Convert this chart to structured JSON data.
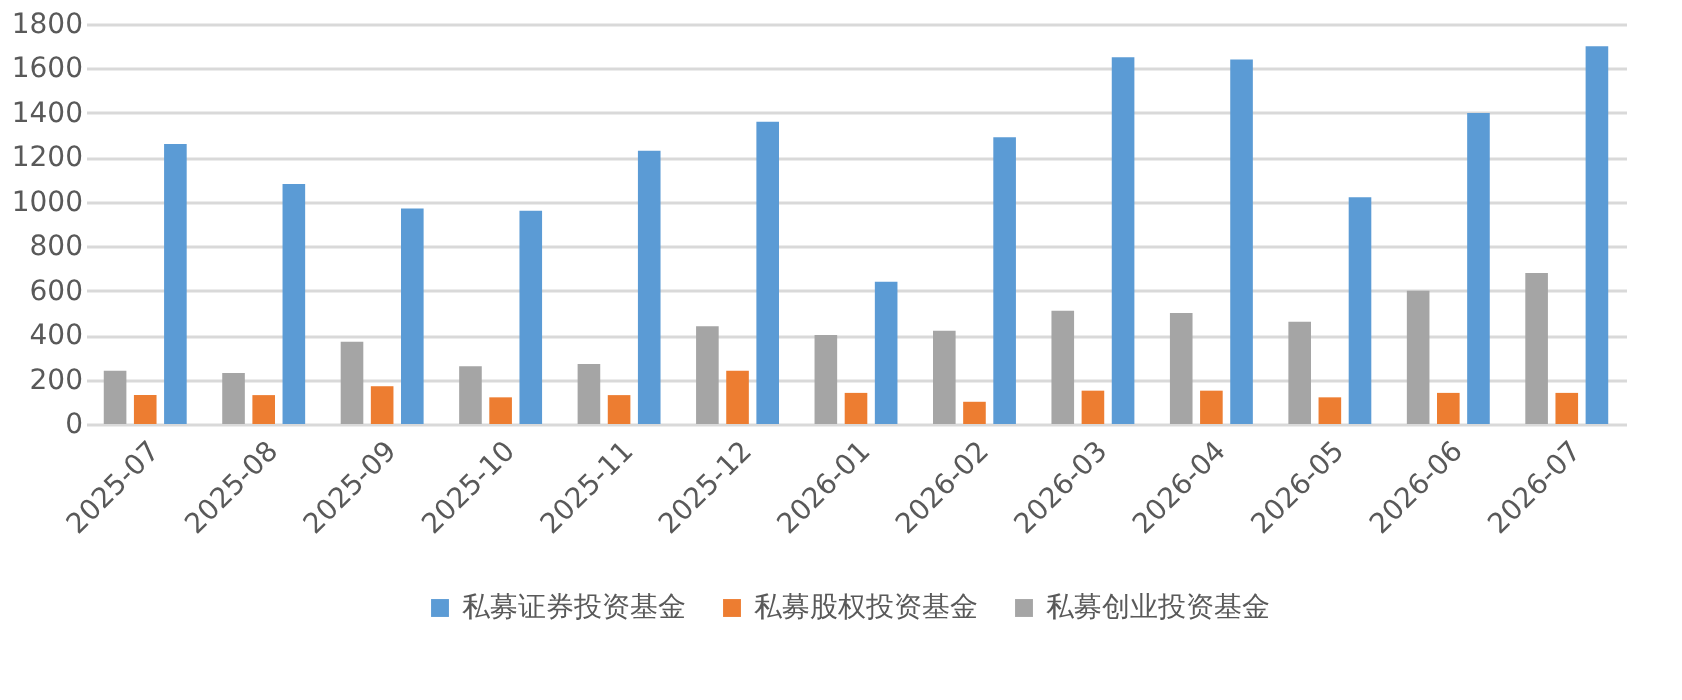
{
  "chart_data": {
    "type": "bar",
    "categories": [
      "2025-07",
      "2025-08",
      "2025-09",
      "2025-10",
      "2025-11",
      "2025-12",
      "2026-01",
      "2026-02",
      "2026-03",
      "2026-04",
      "2026-05",
      "2026-06",
      "2026-07"
    ],
    "series": [
      {
        "name": "私募证券投资基金",
        "color": "#5b9bd5",
        "values": [
          1260,
          1080,
          970,
          960,
          1230,
          1360,
          640,
          1290,
          1650,
          1640,
          1020,
          1400,
          1700
        ]
      },
      {
        "name": "私募股权投资基金",
        "color": "#ed7d31",
        "values": [
          130,
          130,
          170,
          120,
          130,
          240,
          140,
          100,
          150,
          150,
          120,
          140,
          140
        ]
      },
      {
        "name": "私募创业投资基金",
        "color": "#a5a5a5",
        "values": [
          240,
          230,
          370,
          260,
          270,
          440,
          400,
          420,
          510,
          500,
          460,
          600,
          680
        ]
      }
    ],
    "ylim": [
      0,
      1800
    ],
    "yticks": [
      0,
      200,
      400,
      600,
      800,
      1000,
      1200,
      1400,
      1600,
      1800
    ],
    "grid": "y",
    "legend": "bottom"
  }
}
